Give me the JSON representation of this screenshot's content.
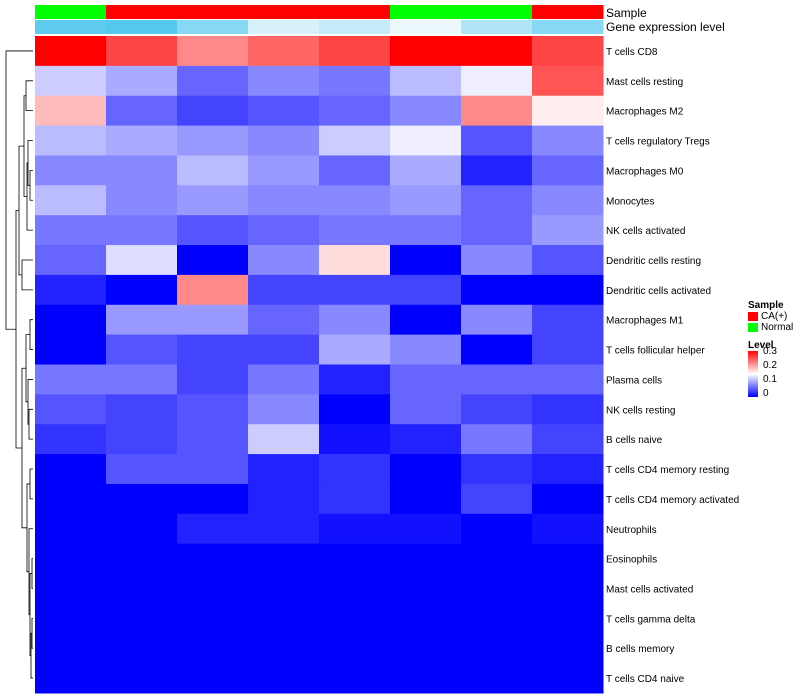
{
  "chart_data": {
    "type": "heatmap",
    "title": "",
    "annotations": {
      "sample_label": "Sample",
      "expression_label": "Gene expression level",
      "sample_groups": [
        "Normal",
        "CA(+)",
        "CA(+)",
        "CA(+)",
        "CA(+)",
        "Normal",
        "Normal",
        "CA(+)"
      ],
      "expression_levels": [
        0.14,
        0.15,
        0.1,
        0.02,
        0.04,
        0.0,
        0.06,
        0.1
      ]
    },
    "rows": [
      "T cells CD8",
      "Mast cells resting",
      "Macrophages M2",
      "T cells regulatory  Tregs",
      "Macrophages M0",
      "Monocytes",
      "NK cells activated",
      "Dendritic cells resting",
      "Dendritic cells activated",
      "Macrophages M1",
      "T cells follicular helper",
      "Plasma cells",
      "NK cells resting",
      "B cells naive",
      "T cells CD4 memory resting",
      "T cells CD4 memory activated",
      "Neutrophils",
      "Eosinophils",
      "Mast cells activated",
      "T cells gamma delta",
      "B cells memory",
      "T cells CD4 naive"
    ],
    "values": [
      [
        0.3,
        0.26,
        0.22,
        0.24,
        0.26,
        0.3,
        0.3,
        0.26
      ],
      [
        0.12,
        0.1,
        0.06,
        0.08,
        0.07,
        0.11,
        0.14,
        0.25
      ],
      [
        0.19,
        0.06,
        0.04,
        0.05,
        0.06,
        0.08,
        0.22,
        0.16
      ],
      [
        0.11,
        0.1,
        0.09,
        0.08,
        0.12,
        0.14,
        0.05,
        0.08
      ],
      [
        0.08,
        0.08,
        0.11,
        0.09,
        0.06,
        0.1,
        0.02,
        0.06
      ],
      [
        0.11,
        0.08,
        0.09,
        0.08,
        0.08,
        0.09,
        0.06,
        0.08
      ],
      [
        0.07,
        0.07,
        0.05,
        0.06,
        0.07,
        0.07,
        0.06,
        0.09
      ],
      [
        0.06,
        0.13,
        0.0,
        0.08,
        0.17,
        0.0,
        0.08,
        0.05
      ],
      [
        0.02,
        0.0,
        0.22,
        0.04,
        0.04,
        0.04,
        0.0,
        0.0
      ],
      [
        0.0,
        0.09,
        0.09,
        0.06,
        0.08,
        0.0,
        0.08,
        0.04
      ],
      [
        0.0,
        0.05,
        0.04,
        0.04,
        0.1,
        0.08,
        0.0,
        0.04
      ],
      [
        0.07,
        0.07,
        0.04,
        0.07,
        0.02,
        0.06,
        0.06,
        0.06
      ],
      [
        0.05,
        0.04,
        0.05,
        0.08,
        0.0,
        0.06,
        0.04,
        0.03
      ],
      [
        0.03,
        0.04,
        0.05,
        0.12,
        0.01,
        0.02,
        0.07,
        0.04
      ],
      [
        0.0,
        0.05,
        0.05,
        0.02,
        0.03,
        0.0,
        0.03,
        0.02
      ],
      [
        0.0,
        0.0,
        0.0,
        0.02,
        0.03,
        0.0,
        0.04,
        0.0
      ],
      [
        0.0,
        0.0,
        0.02,
        0.02,
        0.01,
        0.01,
        0.0,
        0.01
      ],
      [
        0.0,
        0.0,
        0.0,
        0.0,
        0.0,
        0.0,
        0.0,
        0.0
      ],
      [
        0.0,
        0.0,
        0.0,
        0.0,
        0.0,
        0.0,
        0.0,
        0.0
      ],
      [
        0.0,
        0.0,
        0.0,
        0.0,
        0.0,
        0.0,
        0.0,
        0.0
      ],
      [
        0.0,
        0.0,
        0.0,
        0.0,
        0.0,
        0.0,
        0.0,
        0.0
      ],
      [
        0.0,
        0.0,
        0.0,
        0.0,
        0.0,
        0.0,
        0.0,
        0.0
      ]
    ],
    "color_scale": {
      "min": 0,
      "mid": 0.15,
      "max": 0.3,
      "low_color": "#0000ff",
      "mid_color": "#ffffff",
      "high_color": "#ff0000"
    },
    "legend": {
      "position": "right",
      "sample_title": "Sample",
      "sample_items": [
        {
          "label": "CA(+)",
          "color": "#ff0000"
        },
        {
          "label": "Normal",
          "color": "#00ff00"
        }
      ],
      "level_title": "Level",
      "level_ticks": [
        "0.3",
        "0.2",
        "0.1",
        "0"
      ]
    },
    "dendrogram": "rows"
  }
}
